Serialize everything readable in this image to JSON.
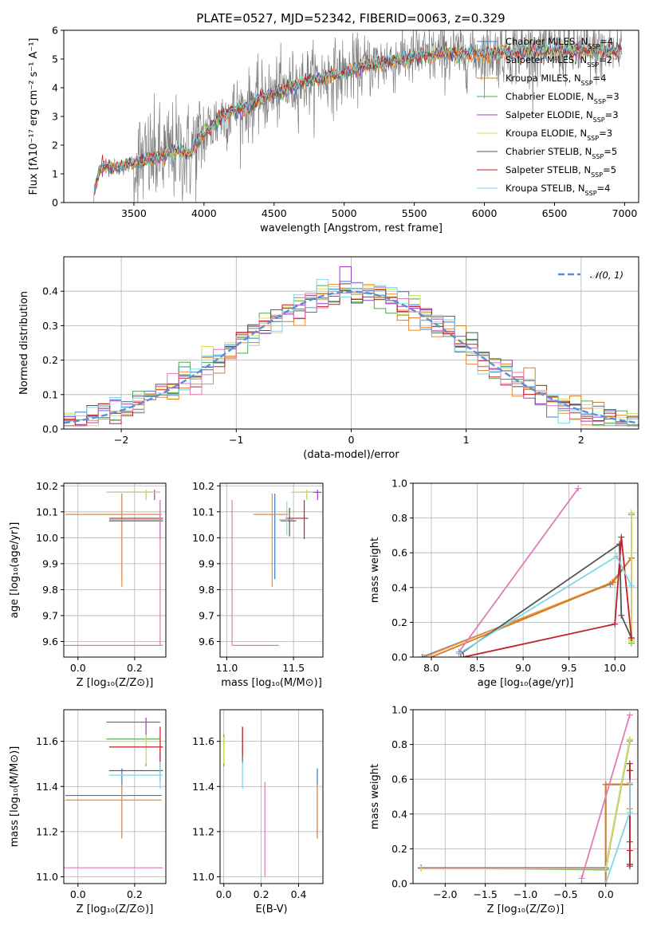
{
  "colors": {
    "Chabrier MILES": "#2f7fd0",
    "Salpeter MILES": "#ee8b3a",
    "Kroupa MILES": "#d97c1c",
    "Chabrier ELODIE": "#4ea84e",
    "Salpeter ELODIE": "#9b3fbf",
    "Kroupa ELODIE": "#d4e05a",
    "Chabrier STELIB": "#555555",
    "Salpeter STELIB": "#c0202a",
    "Kroupa STELIB": "#7fd6e6",
    "Pink": "#e07ab8",
    "Gray": "#808080",
    "Normal": "#5b8fd4"
  },
  "chart_data": [
    {
      "id": "spectrum",
      "type": "line",
      "title": "PLATE=0527, MJD=52342, FIBERID=0063, z=0.329",
      "xlabel": "wavelength [Angstrom, rest frame]",
      "ylabel": "Flux [fλ10⁻¹⁷ erg cm⁻² s⁻¹ A⁻¹]",
      "xlim": [
        3000,
        7100
      ],
      "ylim": [
        0,
        6
      ],
      "xticks": [
        3500,
        4000,
        4500,
        5000,
        5500,
        6000,
        6500,
        7000
      ],
      "yticks": [
        0,
        1,
        2,
        3,
        4,
        5,
        6
      ],
      "legend_position": "top-right",
      "legend": [
        {
          "name": "Chabrier MILES",
          "nssp": "4"
        },
        {
          "name": "Salpeter MILES",
          "nssp": "2"
        },
        {
          "name": "Kroupa MILES",
          "nssp": "4"
        },
        {
          "name": "Chabrier ELODIE",
          "nssp": "3"
        },
        {
          "name": "Salpeter ELODIE",
          "nssp": "3"
        },
        {
          "name": "Kroupa ELODIE",
          "nssp": "3"
        },
        {
          "name": "Chabrier STELIB",
          "nssp": "5"
        },
        {
          "name": "Salpeter STELIB",
          "nssp": "5"
        },
        {
          "name": "Kroupa STELIB",
          "nssp": "4"
        }
      ],
      "model_continuum": {
        "x": [
          3200,
          3250,
          3300,
          3400,
          3500,
          3600,
          3700,
          3800,
          3900,
          4000,
          4100,
          4200,
          4300,
          4400,
          4500,
          4600,
          4700,
          4800,
          4900,
          5000,
          5100,
          5200,
          5300,
          5400,
          5500,
          5600,
          5700,
          5800,
          5900,
          6000,
          6200,
          6400,
          6600,
          6800,
          7000
        ],
        "y": [
          0.0,
          1.1,
          1.3,
          1.2,
          1.4,
          1.5,
          1.6,
          1.8,
          1.7,
          2.4,
          2.9,
          3.2,
          3.3,
          3.6,
          3.8,
          4.0,
          4.2,
          4.3,
          4.4,
          4.5,
          4.7,
          4.8,
          4.9,
          5.0,
          5.1,
          5.1,
          5.2,
          5.15,
          5.2,
          5.2,
          5.25,
          5.3,
          5.3,
          5.25,
          5.3
        ]
      }
    },
    {
      "id": "residuals",
      "type": "histogram",
      "xlabel": "(data-model)/error",
      "ylabel": "Normed distribution",
      "xlim": [
        -2.5,
        2.5
      ],
      "ylim": [
        0,
        0.5
      ],
      "xticks": [
        -2,
        -1,
        0,
        1,
        2
      ],
      "yticks": [
        0.0,
        0.1,
        0.2,
        0.3,
        0.4
      ],
      "legend": "𝒩(0, 1)",
      "legend_position": "top-right",
      "normal_curve": {
        "mean": 0,
        "sigma": 1
      }
    },
    {
      "id": "age_vs_Z",
      "type": "errorbar",
      "xlabel": "Z [log₁₀(Z/Z⊙)]",
      "ylabel": "age  [log₁₀(age/yr)]",
      "xlim": [
        -0.05,
        0.31
      ],
      "ylim": [
        9.54,
        10.21
      ],
      "xticks": [
        0.0,
        0.2
      ],
      "yticks": [
        9.6,
        9.7,
        9.8,
        9.9,
        10.0,
        10.1,
        10.2
      ],
      "points": [
        {
          "series": "Chabrier MILES",
          "x": 0.155,
          "xerr": [
            0.2,
            0.14
          ],
          "y": 10.09,
          "yerr": [
            0.25,
            0.08
          ]
        },
        {
          "series": "Salpeter MILES",
          "x": 0.155,
          "xerr": [
            0.2,
            0.14
          ],
          "y": 10.09,
          "yerr": [
            0.28,
            0.08
          ]
        },
        {
          "series": "Chabrier ELODIE",
          "x": 0.24,
          "xerr": [
            0.14,
            0.05
          ],
          "y": 10.175,
          "yerr": [
            0.03,
            0.01
          ]
        },
        {
          "series": "Salpeter ELODIE",
          "x": 0.27,
          "xerr": [
            0.16,
            0.02
          ],
          "y": 10.175,
          "yerr": [
            0.03,
            0.01
          ]
        },
        {
          "series": "Kroupa ELODIE",
          "x": 0.24,
          "xerr": [
            0.14,
            0.05
          ],
          "y": 10.175,
          "yerr": [
            0.03,
            0.01
          ]
        },
        {
          "series": "Chabrier STELIB",
          "x": 0.29,
          "xerr": [
            0.18,
            0.01
          ],
          "y": 10.065,
          "yerr": [
            0.06,
            0.05
          ]
        },
        {
          "series": "Salpeter STELIB",
          "x": 0.29,
          "xerr": [
            0.18,
            0.01
          ],
          "y": 10.075,
          "yerr": [
            0.08,
            0.07
          ]
        },
        {
          "series": "Kroupa STELIB",
          "x": 0.29,
          "xerr": [
            0.18,
            0.01
          ],
          "y": 10.07,
          "yerr": [
            0.06,
            0.07
          ]
        },
        {
          "series": "Pink",
          "x": 0.29,
          "xerr": [
            0.34,
            0.01
          ],
          "y": 9.585,
          "yerr": [
            0.0,
            0.56
          ]
        }
      ]
    },
    {
      "id": "age_vs_mass",
      "type": "errorbar",
      "xlabel": "mass [log₁₀(M/M⊙)]",
      "ylabel": "",
      "xlim": [
        10.95,
        11.72
      ],
      "ylim": [
        9.54,
        10.21
      ],
      "xticks": [
        11.0,
        11.5
      ],
      "yticks": [
        9.6,
        9.7,
        9.8,
        9.9,
        10.0,
        10.1,
        10.2
      ],
      "points": [
        {
          "series": "Chabrier MILES",
          "x": 11.36,
          "xerr": [
            0.16,
            0.1
          ],
          "y": 10.09,
          "yerr": [
            0.25,
            0.08
          ]
        },
        {
          "series": "Salpeter MILES",
          "x": 11.34,
          "xerr": [
            0.14,
            0.12
          ],
          "y": 10.09,
          "yerr": [
            0.28,
            0.08
          ]
        },
        {
          "series": "Chabrier ELODIE",
          "x": 11.6,
          "xerr": [
            0.1,
            0.05
          ],
          "y": 10.175,
          "yerr": [
            0.03,
            0.01
          ]
        },
        {
          "series": "Salpeter ELODIE",
          "x": 11.68,
          "xerr": [
            0.12,
            0.03
          ],
          "y": 10.175,
          "yerr": [
            0.03,
            0.01
          ]
        },
        {
          "series": "Kroupa ELODIE",
          "x": 11.6,
          "xerr": [
            0.12,
            0.05
          ],
          "y": 10.175,
          "yerr": [
            0.03,
            0.01
          ]
        },
        {
          "series": "Chabrier STELIB",
          "x": 11.47,
          "xerr": [
            0.07,
            0.05
          ],
          "y": 10.065,
          "yerr": [
            0.06,
            0.05
          ]
        },
        {
          "series": "Salpeter STELIB",
          "x": 11.58,
          "xerr": [
            0.14,
            0.03
          ],
          "y": 10.075,
          "yerr": [
            0.08,
            0.07
          ]
        },
        {
          "series": "Kroupa STELIB",
          "x": 11.45,
          "xerr": [
            0.06,
            0.05
          ],
          "y": 10.07,
          "yerr": [
            0.06,
            0.07
          ]
        },
        {
          "series": "Pink",
          "x": 11.04,
          "xerr": [
            0.0,
            0.35
          ],
          "y": 9.585,
          "yerr": [
            0.0,
            0.56
          ]
        }
      ]
    },
    {
      "id": "weight_vs_age",
      "type": "line",
      "xlabel": "age  [log₁₀(age/yr)]",
      "ylabel": "mass weight",
      "xlim": [
        7.8,
        10.25
      ],
      "ylim": [
        0,
        1
      ],
      "xticks": [
        8.0,
        8.5,
        9.0,
        9.5,
        10.0
      ],
      "yticks": [
        0.0,
        0.2,
        0.4,
        0.6,
        0.8,
        1.0
      ],
      "series": [
        {
          "name": "Chabrier MILES",
          "x": [
            7.9,
            9.95,
            10.18
          ],
          "y": [
            0.0,
            0.42,
            0.57
          ]
        },
        {
          "name": "Salpeter MILES",
          "x": [
            7.92,
            9.97,
            10.18
          ],
          "y": [
            0.0,
            0.43,
            0.57
          ]
        },
        {
          "name": "Kroupa MILES",
          "x": [
            8.0,
            9.98,
            10.18
          ],
          "y": [
            0.0,
            0.43,
            0.57
          ]
        },
        {
          "name": "Chabrier ELODIE",
          "x": [
            10.18,
            10.18,
            10.18
          ],
          "y": [
            0.08,
            0.1,
            0.82
          ]
        },
        {
          "name": "Salpeter ELODIE",
          "x": [
            10.18,
            10.18,
            10.18
          ],
          "y": [
            0.09,
            0.1,
            0.83
          ]
        },
        {
          "name": "Kroupa ELODIE",
          "x": [
            10.18,
            10.18,
            10.18
          ],
          "y": [
            0.09,
            0.1,
            0.83
          ]
        },
        {
          "name": "Chabrier STELIB",
          "x": [
            8.32,
            10.05,
            10.07,
            10.18
          ],
          "y": [
            0.02,
            0.65,
            0.24,
            0.11
          ]
        },
        {
          "name": "Salpeter STELIB",
          "x": [
            8.35,
            10.0,
            10.07,
            10.18
          ],
          "y": [
            0.0,
            0.19,
            0.69,
            0.11
          ]
        },
        {
          "name": "Kroupa STELIB",
          "x": [
            8.3,
            10.02,
            10.18
          ],
          "y": [
            0.02,
            0.58,
            0.41
          ]
        },
        {
          "name": "Pink",
          "x": [
            8.3,
            9.6
          ],
          "y": [
            0.03,
            0.97
          ]
        }
      ]
    },
    {
      "id": "mass_vs_Z",
      "type": "errorbar",
      "xlabel": "Z [log₁₀(Z/Z⊙)]",
      "ylabel": "mass [log₁₀(M/M⊙)]",
      "xlim": [
        -0.05,
        0.31
      ],
      "ylim": [
        10.97,
        11.74
      ],
      "xticks": [
        0.0,
        0.2
      ],
      "yticks": [
        11.0,
        11.2,
        11.4,
        11.6
      ],
      "points": [
        {
          "series": "Chabrier MILES",
          "x": 0.155,
          "xerr": [
            0.2,
            0.14
          ],
          "y": 11.36,
          "yerr": [
            0.19,
            0.12
          ]
        },
        {
          "series": "Salpeter MILES",
          "x": 0.155,
          "xerr": [
            0.2,
            0.14
          ],
          "y": 11.34,
          "yerr": [
            0.17,
            0.07
          ]
        },
        {
          "series": "Chabrier ELODIE",
          "x": 0.24,
          "xerr": [
            0.14,
            0.05
          ],
          "y": 11.61,
          "yerr": [
            0.12,
            0.03
          ]
        },
        {
          "series": "Salpeter ELODIE",
          "x": 0.24,
          "xerr": [
            0.14,
            0.05
          ],
          "y": 11.685,
          "yerr": [
            0.07,
            0.02
          ]
        },
        {
          "series": "Kroupa ELODIE",
          "x": 0.24,
          "xerr": [
            0.14,
            0.05
          ],
          "y": 11.6,
          "yerr": [
            0.1,
            0.03
          ]
        },
        {
          "series": "Chabrier STELIB",
          "x": 0.29,
          "xerr": [
            0.18,
            0.01
          ],
          "y": 11.47,
          "yerr": [
            0.05,
            0.1
          ]
        },
        {
          "series": "Salpeter STELIB",
          "x": 0.29,
          "xerr": [
            0.18,
            0.01
          ],
          "y": 11.575,
          "yerr": [
            0.09,
            0.09
          ]
        },
        {
          "series": "Kroupa STELIB",
          "x": 0.29,
          "xerr": [
            0.18,
            0.01
          ],
          "y": 11.45,
          "yerr": [
            0.06,
            0.06
          ]
        },
        {
          "series": "Pink",
          "x": 0.29,
          "xerr": [
            0.34,
            0.01
          ],
          "y": 11.04,
          "yerr": [
            0.0,
            0.0
          ]
        }
      ]
    },
    {
      "id": "mass_vs_EBV",
      "type": "errorbar",
      "xlabel": "E(B-V)",
      "ylabel": "",
      "xlim": [
        -0.02,
        0.53
      ],
      "ylim": [
        10.97,
        11.74
      ],
      "xticks": [
        0.0,
        0.2,
        0.4
      ],
      "yticks": [
        11.0,
        11.2,
        11.4,
        11.6
      ],
      "points": [
        {
          "series": "Chabrier MILES",
          "x": 0.5,
          "xerr": [
            0,
            0
          ],
          "y": 11.36,
          "yerr": [
            0.19,
            0.12
          ]
        },
        {
          "series": "Salpeter MILES",
          "x": 0.5,
          "xerr": [
            0,
            0
          ],
          "y": 11.34,
          "yerr": [
            0.17,
            0.07
          ]
        },
        {
          "series": "Chabrier ELODIE",
          "x": 0.0,
          "xerr": [
            0,
            0
          ],
          "y": 11.61,
          "yerr": [
            0.12,
            0.02
          ]
        },
        {
          "series": "Salpeter ELODIE",
          "x": 0.0,
          "xerr": [
            0,
            0
          ],
          "y": 11.6,
          "yerr": [
            0.01,
            0.02
          ]
        },
        {
          "series": "Kroupa ELODIE",
          "x": 0.0,
          "xerr": [
            0,
            0
          ],
          "y": 11.6,
          "yerr": [
            0.1,
            0.02
          ]
        },
        {
          "series": "Chabrier STELIB",
          "x": 0.1,
          "xerr": [
            0,
            0
          ],
          "y": 11.55,
          "yerr": [
            0.05,
            0.11
          ]
        },
        {
          "series": "Salpeter STELIB",
          "x": 0.1,
          "xerr": [
            0,
            0
          ],
          "y": 11.575,
          "yerr": [
            0.04,
            0.09
          ]
        },
        {
          "series": "Kroupa STELIB",
          "x": 0.1,
          "xerr": [
            0,
            0
          ],
          "y": 11.45,
          "yerr": [
            0.06,
            0.06
          ]
        },
        {
          "series": "Pink",
          "x": 0.22,
          "xerr": [
            0,
            0
          ],
          "y": 11.2,
          "yerr": [
            0.2,
            0.22
          ]
        }
      ]
    },
    {
      "id": "weight_vs_Z",
      "type": "line",
      "xlabel": "Z [log₁₀(Z/Z⊙)]",
      "ylabel": "mass weight",
      "xlim": [
        -2.4,
        0.4
      ],
      "ylim": [
        0,
        1
      ],
      "xticks": [
        -2.0,
        -1.5,
        -1.0,
        -0.5,
        0.0
      ],
      "yticks": [
        0.0,
        0.2,
        0.4,
        0.6,
        0.8,
        1.0
      ],
      "series": [
        {
          "name": "Chabrier MILES",
          "x": [
            -0.3,
            0.0,
            0.0,
            0.3
          ],
          "y": [
            0.0,
            0.0,
            0.57,
            0.57
          ]
        },
        {
          "name": "Salpeter MILES",
          "x": [
            0.0,
            0.0,
            0.3,
            0.3
          ],
          "y": [
            0.0,
            0.57,
            0.57,
            0.43
          ]
        },
        {
          "name": "Kroupa MILES",
          "x": [
            -0.3,
            0.0,
            0.0,
            0.3
          ],
          "y": [
            0.0,
            0.0,
            0.57,
            0.57
          ]
        },
        {
          "name": "Chabrier ELODIE",
          "x": [
            -2.3,
            0.0,
            0.3
          ],
          "y": [
            0.09,
            0.08,
            0.82
          ]
        },
        {
          "name": "Salpeter ELODIE",
          "x": [
            -2.3,
            0.0,
            0.3
          ],
          "y": [
            0.09,
            0.09,
            0.83
          ]
        },
        {
          "name": "Kroupa ELODIE",
          "x": [
            -2.3,
            0.0,
            0.3
          ],
          "y": [
            0.085,
            0.085,
            0.83
          ]
        },
        {
          "name": "Chabrier STELIB",
          "x": [
            0.3,
            0.3,
            0.3,
            0.3,
            0.3
          ],
          "y": [
            0.11,
            0.24,
            0.65,
            0.69,
            0.11
          ]
        },
        {
          "name": "Salpeter STELIB",
          "x": [
            0.3,
            0.3,
            0.3,
            0.3
          ],
          "y": [
            0.1,
            0.19,
            0.69,
            0.65
          ]
        },
        {
          "name": "Kroupa STELIB",
          "x": [
            0.0,
            0.0,
            0.3,
            0.3
          ],
          "y": [
            0.0,
            0.0,
            0.41,
            0.58
          ]
        },
        {
          "name": "Pink",
          "x": [
            -0.3,
            0.3
          ],
          "y": [
            0.03,
            0.97
          ]
        }
      ]
    }
  ]
}
